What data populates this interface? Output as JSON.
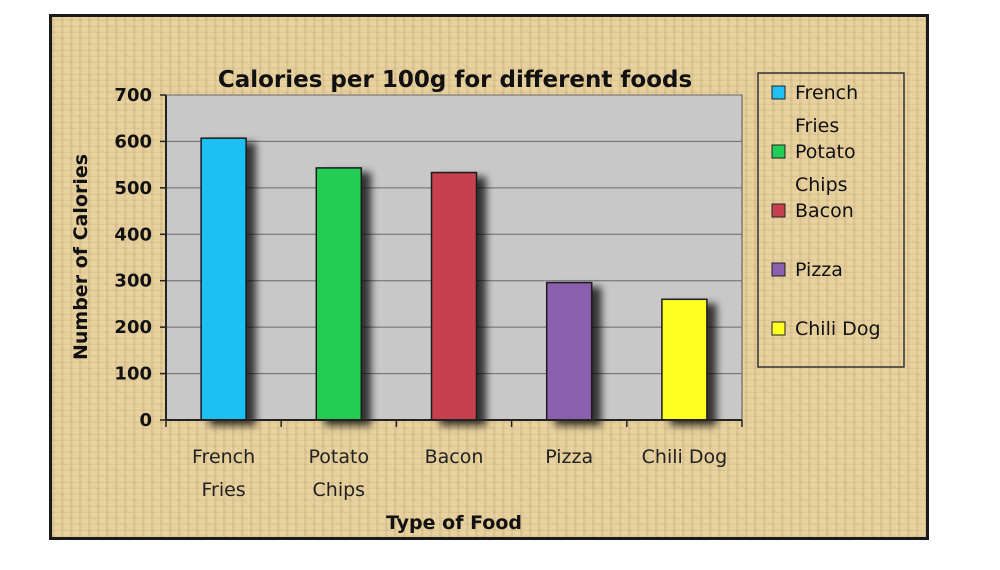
{
  "chart_data": {
    "type": "bar",
    "title": "Calories per 100g for different foods",
    "xlabel": "Type of Food",
    "ylabel": "Number of Calories",
    "ylim": [
      0,
      700
    ],
    "yticks": [
      0,
      100,
      200,
      300,
      400,
      500,
      600,
      700
    ],
    "categories": [
      [
        "French",
        "Fries"
      ],
      [
        "Potato",
        "Chips"
      ],
      [
        "Bacon"
      ],
      [
        "Pizza"
      ],
      [
        "Chili Dog"
      ]
    ],
    "values": [
      607,
      543,
      533,
      296,
      260
    ],
    "colors": [
      "#1fc0f2",
      "#22cc55",
      "#c6404f",
      "#8a5fad",
      "#ffff22"
    ],
    "legend": {
      "placement": "right",
      "entries": [
        [
          "French",
          "Fries"
        ],
        [
          "Potato",
          "Chips"
        ],
        [
          "Bacon"
        ],
        [
          "Pizza"
        ],
        [
          "Chili Dog"
        ]
      ]
    },
    "grid": true
  }
}
